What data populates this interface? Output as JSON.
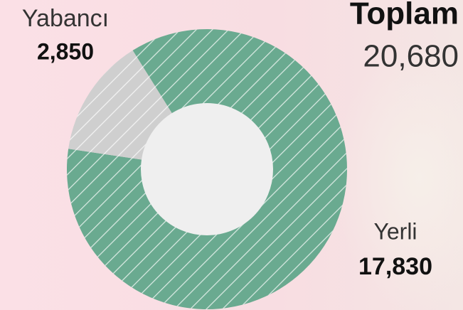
{
  "chart_data": {
    "type": "donut",
    "title": "Toplam",
    "total": {
      "value": 20680,
      "label": "20,680"
    },
    "categories": [
      "Yerli",
      "Yabancı"
    ],
    "values": [
      17830,
      2850
    ],
    "value_labels": [
      "17,830",
      "2,850"
    ],
    "colors": [
      "#6aaa90",
      "#cfcfcf"
    ]
  }
}
